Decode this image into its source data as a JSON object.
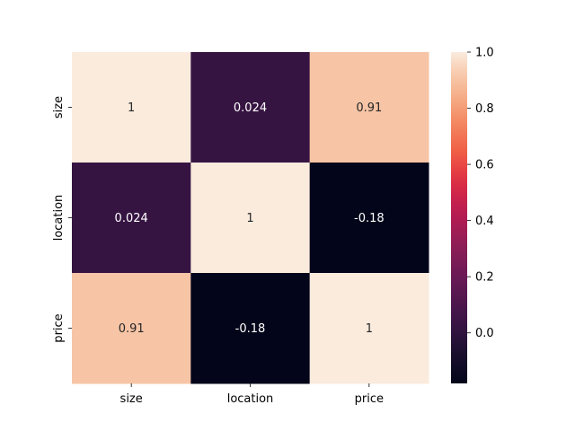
{
  "chart_data": {
    "type": "heatmap",
    "title": "",
    "x_categories": [
      "size",
      "location",
      "price"
    ],
    "y_categories": [
      "size",
      "location",
      "price"
    ],
    "values": [
      [
        1,
        0.024,
        0.91
      ],
      [
        0.024,
        1,
        -0.18
      ],
      [
        0.91,
        -0.18,
        1
      ]
    ],
    "cell_labels": [
      [
        "1",
        "0.024",
        "0.91"
      ],
      [
        "0.024",
        "1",
        "-0.18"
      ],
      [
        "0.91",
        "-0.18",
        "1"
      ]
    ],
    "colorbar": {
      "range": [
        -0.18,
        1.0
      ],
      "ticks": [
        0.0,
        0.2,
        0.4,
        0.6,
        0.8,
        1.0
      ],
      "tick_labels": [
        "0.0",
        "0.2",
        "0.4",
        "0.6",
        "0.8",
        "1.0"
      ],
      "colormap": "rocket"
    },
    "colors": {
      "high": "#faebdd",
      "low": "#03051a"
    }
  }
}
